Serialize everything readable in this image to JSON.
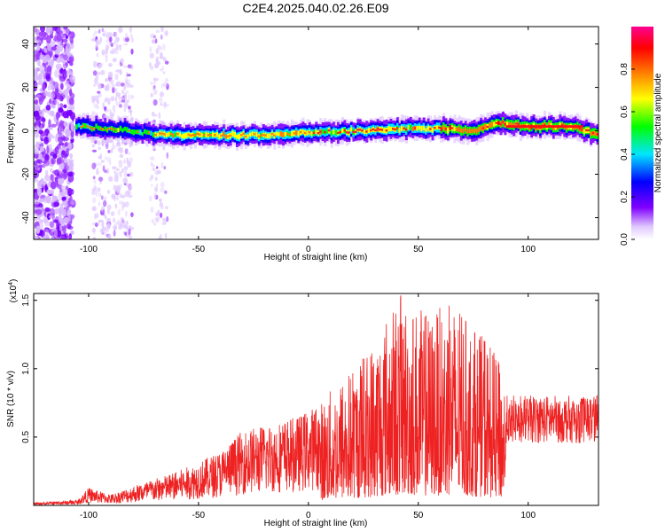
{
  "title": "C2E4.2025.040.02.26.E09",
  "chart_data": [
    {
      "type": "heatmap",
      "xlabel": "Height of straight line (km)",
      "ylabel": "Frequency (Hz)",
      "xlim": [
        -125,
        132
      ],
      "ylim": [
        -50,
        48
      ],
      "x_ticks": [
        -100,
        -50,
        0,
        50,
        100
      ],
      "y_ticks": [
        -40,
        -20,
        0,
        20,
        40
      ],
      "colorbar": {
        "label": "Normalized spectral amplitude",
        "range": [
          0.0,
          1.0
        ],
        "ticks": [
          "0.0",
          "0.2",
          "0.4",
          "0.6",
          "0.8"
        ],
        "colormap": [
          "#ffffff",
          "#e6ccff",
          "#8000ff",
          "#0000ff",
          "#00e5ff",
          "#00ff00",
          "#ffff00",
          "#ff8000",
          "#ff0000",
          "#ff0090"
        ]
      },
      "ridge_center_hz": [
        {
          "x": -106,
          "y": 2
        },
        {
          "x": -90,
          "y": 1
        },
        {
          "x": -75,
          "y": -1
        },
        {
          "x": -60,
          "y": -2
        },
        {
          "x": -40,
          "y": -2
        },
        {
          "x": -20,
          "y": -2
        },
        {
          "x": 0,
          "y": -1
        },
        {
          "x": 20,
          "y": 0
        },
        {
          "x": 40,
          "y": 1
        },
        {
          "x": 60,
          "y": 1
        },
        {
          "x": 75,
          "y": 0
        },
        {
          "x": 85,
          "y": 4
        },
        {
          "x": 100,
          "y": 2
        },
        {
          "x": 120,
          "y": 2
        },
        {
          "x": 132,
          "y": -2
        }
      ]
    },
    {
      "type": "line",
      "xlabel": "Height of straight line (km)",
      "ylabel": "SNR (10 * v/v)",
      "y_multiplier": "(x10",
      "y_multiplier_exp": "4",
      "xlim": [
        -125,
        132
      ],
      "ylim": [
        0,
        1.55
      ],
      "x_ticks": [
        -100,
        -50,
        0,
        50,
        100
      ],
      "y_ticks": [
        "0.5",
        "1.0",
        "1.5"
      ],
      "series_color": "#ee2222",
      "envelope": [
        {
          "x": -125,
          "y": 0.02
        },
        {
          "x": -105,
          "y": 0.04
        },
        {
          "x": -100,
          "y": 0.13
        },
        {
          "x": -90,
          "y": 0.08
        },
        {
          "x": -75,
          "y": 0.17
        },
        {
          "x": -65,
          "y": 0.22
        },
        {
          "x": -52,
          "y": 0.3
        },
        {
          "x": -40,
          "y": 0.4
        },
        {
          "x": -30,
          "y": 0.55
        },
        {
          "x": -18,
          "y": 0.6
        },
        {
          "x": -5,
          "y": 0.65
        },
        {
          "x": 5,
          "y": 0.75
        },
        {
          "x": 15,
          "y": 0.95
        },
        {
          "x": 25,
          "y": 1.1
        },
        {
          "x": 35,
          "y": 1.4
        },
        {
          "x": 42,
          "y": 1.55
        },
        {
          "x": 55,
          "y": 1.4
        },
        {
          "x": 65,
          "y": 1.5
        },
        {
          "x": 75,
          "y": 1.3
        },
        {
          "x": 82,
          "y": 1.2
        },
        {
          "x": 90,
          "y": 0.95
        },
        {
          "x": 100,
          "y": 0.85
        },
        {
          "x": 115,
          "y": 0.8
        },
        {
          "x": 132,
          "y": 0.85
        }
      ]
    }
  ]
}
